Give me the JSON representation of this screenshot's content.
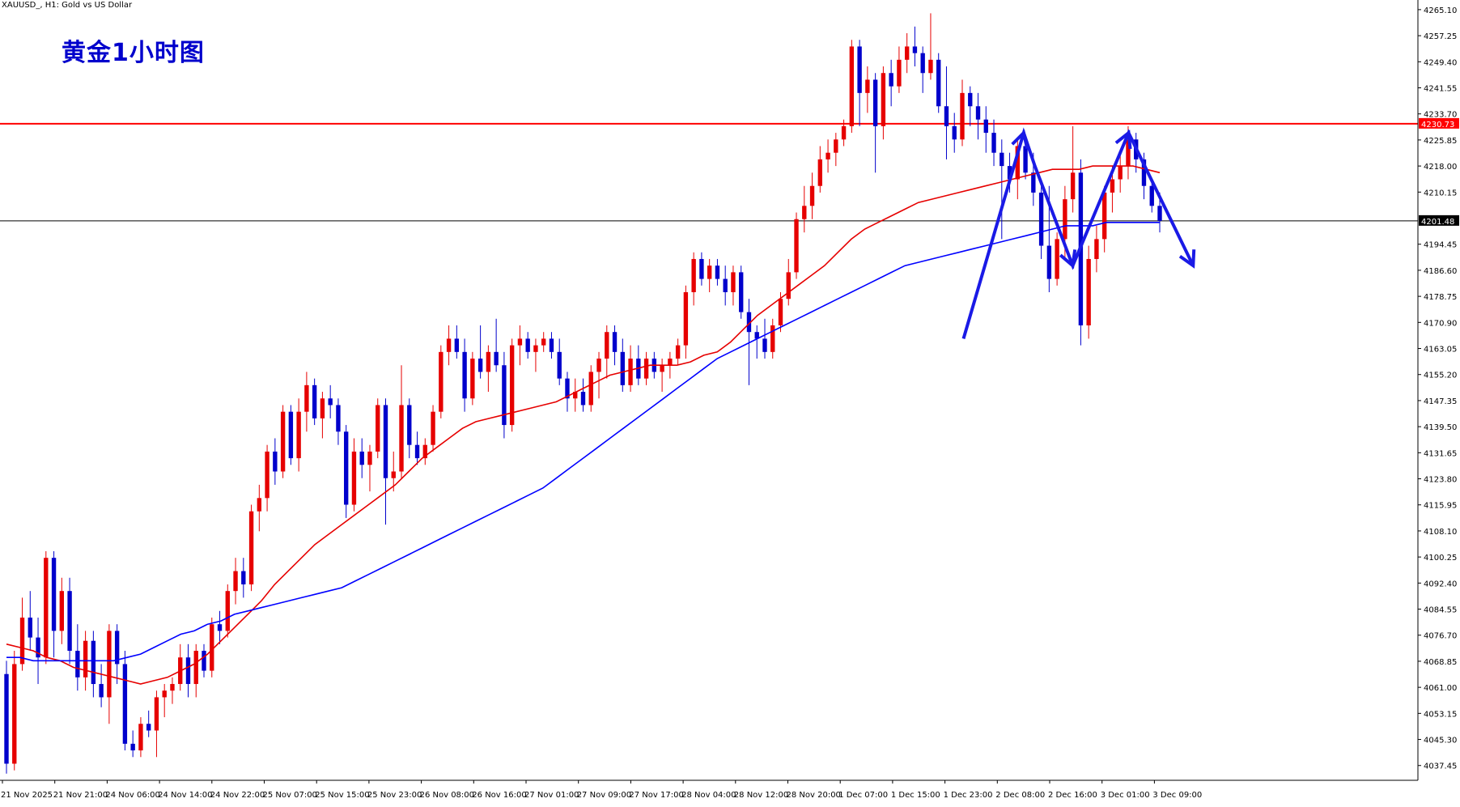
{
  "header": {
    "symbol_caption": "XAUUSD_, H1:  Gold vs US Dollar",
    "heading": "黄金1小时图"
  },
  "colors": {
    "bull": "#E60000",
    "bear": "#0000CC",
    "ma_fast": "#E60000",
    "ma_slow": "#0000FF",
    "resistance_line": "#FF0000",
    "price_line": "#000000",
    "forecast": "#1A1AE6"
  },
  "chart_data": {
    "type": "candlestick",
    "timeframe": "H1",
    "y_ticks": [
      4265.1,
      4257.25,
      4249.4,
      4241.55,
      4233.7,
      4225.85,
      4218.0,
      4210.15,
      4201.48,
      4194.45,
      4186.6,
      4178.75,
      4170.9,
      4163.05,
      4155.2,
      4147.35,
      4139.5,
      4131.65,
      4123.8,
      4115.95,
      4108.1,
      4100.25,
      4092.4,
      4084.55,
      4076.7,
      4068.85,
      4061.0,
      4053.15,
      4045.3,
      4037.45
    ],
    "ylim": [
      4033.0,
      4268.0
    ],
    "x_labels": [
      "21 Nov 2025",
      "21 Nov 21:00",
      "24 Nov 06:00",
      "24 Nov 14:00",
      "24 Nov 22:00",
      "25 Nov 07:00",
      "25 Nov 15:00",
      "25 Nov 23:00",
      "26 Nov 08:00",
      "26 Nov 16:00",
      "27 Nov 01:00",
      "27 Nov 09:00",
      "27 Nov 17:00",
      "28 Nov 04:00",
      "28 Nov 12:00",
      "28 Nov 20:00",
      "1 Dec 07:00",
      "1 Dec 15:00",
      "1 Dec 23:00",
      "2 Dec 08:00",
      "2 Dec 16:00",
      "3 Dec 01:00",
      "3 Dec 09:00"
    ],
    "resistance_level": 4230.73,
    "resistance_label": "4230.73",
    "current_price": 4201.48,
    "current_price_label": "4201.48",
    "candles": [
      [
        4065,
        4069,
        4035,
        4038
      ],
      [
        4038,
        4072,
        4036,
        4068
      ],
      [
        4068,
        4088,
        4066,
        4082
      ],
      [
        4082,
        4090,
        4072,
        4076
      ],
      [
        4076,
        4082,
        4062,
        4070
      ],
      [
        4070,
        4102,
        4068,
        4100
      ],
      [
        4100,
        4102,
        4070,
        4078
      ],
      [
        4078,
        4094,
        4074,
        4090
      ],
      [
        4090,
        4094,
        4068,
        4072
      ],
      [
        4072,
        4080,
        4060,
        4064
      ],
      [
        4064,
        4078,
        4060,
        4075
      ],
      [
        4075,
        4078,
        4058,
        4062
      ],
      [
        4062,
        4068,
        4055,
        4058
      ],
      [
        4058,
        4080,
        4050,
        4078
      ],
      [
        4078,
        4080,
        4062,
        4068
      ],
      [
        4068,
        4072,
        4042,
        4044
      ],
      [
        4044,
        4048,
        4040,
        4042
      ],
      [
        4042,
        4052,
        4040,
        4050
      ],
      [
        4050,
        4054,
        4046,
        4048
      ],
      [
        4048,
        4060,
        4040,
        4058
      ],
      [
        4058,
        4062,
        4052,
        4060
      ],
      [
        4060,
        4064,
        4056,
        4062
      ],
      [
        4062,
        4074,
        4060,
        4070
      ],
      [
        4070,
        4074,
        4058,
        4062
      ],
      [
        4062,
        4074,
        4058,
        4072
      ],
      [
        4072,
        4074,
        4064,
        4066
      ],
      [
        4066,
        4082,
        4064,
        4080
      ],
      [
        4080,
        4084,
        4074,
        4078
      ],
      [
        4078,
        4092,
        4076,
        4090
      ],
      [
        4090,
        4100,
        4086,
        4096
      ],
      [
        4096,
        4100,
        4088,
        4092
      ],
      [
        4092,
        4116,
        4090,
        4114
      ],
      [
        4114,
        4122,
        4108,
        4118
      ],
      [
        4118,
        4134,
        4114,
        4132
      ],
      [
        4132,
        4136,
        4122,
        4126
      ],
      [
        4126,
        4146,
        4124,
        4144
      ],
      [
        4144,
        4146,
        4128,
        4130
      ],
      [
        4130,
        4148,
        4126,
        4144
      ],
      [
        4144,
        4156,
        4138,
        4152
      ],
      [
        4152,
        4154,
        4140,
        4142
      ],
      [
        4142,
        4150,
        4136,
        4148
      ],
      [
        4148,
        4152,
        4142,
        4146
      ],
      [
        4146,
        4148,
        4134,
        4138
      ],
      [
        4138,
        4140,
        4112,
        4116
      ],
      [
        4116,
        4136,
        4114,
        4132
      ],
      [
        4132,
        4136,
        4124,
        4128
      ],
      [
        4128,
        4134,
        4120,
        4132
      ],
      [
        4132,
        4148,
        4130,
        4146
      ],
      [
        4146,
        4148,
        4110,
        4124
      ],
      [
        4124,
        4132,
        4120,
        4126
      ],
      [
        4126,
        4158,
        4124,
        4146
      ],
      [
        4146,
        4148,
        4130,
        4134
      ],
      [
        4134,
        4138,
        4128,
        4130
      ],
      [
        4130,
        4136,
        4128,
        4134
      ],
      [
        4134,
        4146,
        4132,
        4144
      ],
      [
        4144,
        4164,
        4142,
        4162
      ],
      [
        4162,
        4170,
        4158,
        4166
      ],
      [
        4166,
        4170,
        4160,
        4162
      ],
      [
        4162,
        4166,
        4144,
        4148
      ],
      [
        4148,
        4162,
        4146,
        4160
      ],
      [
        4160,
        4170,
        4154,
        4156
      ],
      [
        4156,
        4164,
        4150,
        4162
      ],
      [
        4162,
        4172,
        4156,
        4158
      ],
      [
        4158,
        4162,
        4136,
        4140
      ],
      [
        4140,
        4166,
        4138,
        4164
      ],
      [
        4164,
        4170,
        4158,
        4166
      ],
      [
        4166,
        4168,
        4160,
        4162
      ],
      [
        4162,
        4166,
        4156,
        4164
      ],
      [
        4164,
        4168,
        4162,
        4166
      ],
      [
        4166,
        4168,
        4160,
        4162
      ],
      [
        4162,
        4166,
        4152,
        4154
      ],
      [
        4154,
        4156,
        4144,
        4148
      ],
      [
        4148,
        4154,
        4144,
        4150
      ],
      [
        4150,
        4154,
        4144,
        4146
      ],
      [
        4146,
        4158,
        4144,
        4156
      ],
      [
        4156,
        4162,
        4148,
        4160
      ],
      [
        4160,
        4170,
        4154,
        4168
      ],
      [
        4168,
        4170,
        4158,
        4162
      ],
      [
        4162,
        4166,
        4150,
        4152
      ],
      [
        4152,
        4164,
        4150,
        4160
      ],
      [
        4160,
        4164,
        4152,
        4154
      ],
      [
        4154,
        4162,
        4152,
        4160
      ],
      [
        4160,
        4162,
        4154,
        4156
      ],
      [
        4156,
        4160,
        4150,
        4158
      ],
      [
        4158,
        4162,
        4154,
        4160
      ],
      [
        4160,
        4166,
        4158,
        4164
      ],
      [
        4164,
        4182,
        4160,
        4180
      ],
      [
        4180,
        4192,
        4176,
        4190
      ],
      [
        4190,
        4192,
        4182,
        4184
      ],
      [
        4184,
        4190,
        4180,
        4188
      ],
      [
        4188,
        4190,
        4182,
        4184
      ],
      [
        4184,
        4188,
        4176,
        4180
      ],
      [
        4180,
        4188,
        4176,
        4186
      ],
      [
        4186,
        4188,
        4172,
        4174
      ],
      [
        4174,
        4178,
        4152,
        4168
      ],
      [
        4168,
        4170,
        4160,
        4166
      ],
      [
        4166,
        4172,
        4160,
        4162
      ],
      [
        4162,
        4172,
        4160,
        4170
      ],
      [
        4170,
        4180,
        4168,
        4178
      ],
      [
        4178,
        4190,
        4176,
        4186
      ],
      [
        4186,
        4204,
        4184,
        4202
      ],
      [
        4202,
        4212,
        4198,
        4206
      ],
      [
        4206,
        4216,
        4202,
        4212
      ],
      [
        4212,
        4224,
        4210,
        4220
      ],
      [
        4220,
        4226,
        4216,
        4222
      ],
      [
        4222,
        4228,
        4218,
        4226
      ],
      [
        4226,
        4232,
        4224,
        4230
      ],
      [
        4230,
        4256,
        4228,
        4254
      ],
      [
        4254,
        4256,
        4230,
        4240
      ],
      [
        4240,
        4248,
        4234,
        4244
      ],
      [
        4244,
        4246,
        4216,
        4230
      ],
      [
        4230,
        4248,
        4226,
        4246
      ],
      [
        4246,
        4250,
        4236,
        4242
      ],
      [
        4242,
        4254,
        4240,
        4250
      ],
      [
        4250,
        4258,
        4246,
        4254
      ],
      [
        4254,
        4260,
        4248,
        4252
      ],
      [
        4252,
        4254,
        4240,
        4246
      ],
      [
        4246,
        4264,
        4244,
        4250
      ],
      [
        4250,
        4252,
        4234,
        4236
      ],
      [
        4236,
        4248,
        4220,
        4230
      ],
      [
        4230,
        4234,
        4222,
        4226
      ],
      [
        4226,
        4244,
        4224,
        4240
      ],
      [
        4240,
        4242,
        4230,
        4236
      ],
      [
        4236,
        4240,
        4226,
        4232
      ],
      [
        4232,
        4236,
        4222,
        4228
      ],
      [
        4228,
        4232,
        4218,
        4222
      ],
      [
        4222,
        4226,
        4196,
        4218
      ],
      [
        4218,
        4222,
        4210,
        4214
      ],
      [
        4214,
        4226,
        4208,
        4224
      ],
      [
        4224,
        4226,
        4214,
        4216
      ],
      [
        4216,
        4222,
        4206,
        4210
      ],
      [
        4210,
        4214,
        4190,
        4194
      ],
      [
        4194,
        4212,
        4180,
        4184
      ],
      [
        4184,
        4198,
        4182,
        4196
      ],
      [
        4196,
        4212,
        4190,
        4208
      ],
      [
        4208,
        4230,
        4204,
        4216
      ],
      [
        4216,
        4220,
        4164,
        4170
      ],
      [
        4170,
        4194,
        4166,
        4190
      ],
      [
        4190,
        4200,
        4186,
        4196
      ],
      [
        4196,
        4212,
        4192,
        4210
      ],
      [
        4210,
        4218,
        4204,
        4214
      ],
      [
        4214,
        4222,
        4210,
        4218
      ],
      [
        4218,
        4230,
        4214,
        4226
      ],
      [
        4226,
        4228,
        4216,
        4220
      ],
      [
        4220,
        4222,
        4208,
        4212
      ],
      [
        4212,
        4214,
        4204,
        4206
      ],
      [
        4206,
        4210,
        4198,
        4201.48
      ]
    ],
    "ma_fast_values": [
      4074,
      4073,
      4072,
      4070,
      4069,
      4067,
      4066,
      4065,
      4064,
      4063,
      4062,
      4063,
      4064,
      4066,
      4068,
      4071,
      4075,
      4079,
      4083,
      4087,
      4092,
      4096,
      4100,
      4104,
      4107,
      4110,
      4113,
      4116,
      4119,
      4122,
      4126,
      4130,
      4133,
      4136,
      4139,
      4141,
      4142,
      4143,
      4144,
      4145,
      4146,
      4147,
      4149,
      4151,
      4153,
      4155,
      4156,
      4157,
      4158,
      4158,
      4158,
      4159,
      4161,
      4162,
      4165,
      4169,
      4173,
      4176,
      4179,
      4182,
      4185,
      4188,
      4192,
      4196,
      4199,
      4201,
      4203,
      4205,
      4207,
      4208,
      4209,
      4210,
      4211,
      4212,
      4213,
      4214,
      4215,
      4216,
      4217,
      4217,
      4217,
      4218,
      4218,
      4218,
      4218,
      4217,
      4216
    ],
    "ma_slow_values": [
      4070,
      4070,
      4069,
      4069,
      4069,
      4069,
      4069,
      4069,
      4069,
      4070,
      4071,
      4073,
      4075,
      4077,
      4078,
      4080,
      4081,
      4083,
      4084,
      4085,
      4086,
      4087,
      4088,
      4089,
      4090,
      4091,
      4093,
      4095,
      4097,
      4099,
      4101,
      4103,
      4105,
      4107,
      4109,
      4111,
      4113,
      4115,
      4117,
      4119,
      4121,
      4124,
      4127,
      4130,
      4133,
      4136,
      4139,
      4142,
      4145,
      4148,
      4151,
      4154,
      4157,
      4160,
      4162,
      4164,
      4166,
      4168,
      4170,
      4172,
      4174,
      4176,
      4178,
      4180,
      4182,
      4184,
      4186,
      4188,
      4189,
      4190,
      4191,
      4192,
      4193,
      4194,
      4195,
      4196,
      4197,
      4198,
      4199,
      4200,
      4200,
      4200,
      4201,
      4201,
      4201,
      4201,
      4201
    ],
    "forecast_path": [
      [
        4166,
        1120
      ],
      [
        4228,
        1190
      ],
      [
        4218,
        1203
      ],
      [
        4188,
        1247
      ],
      [
        4228,
        1312
      ],
      [
        4188,
        1387
      ]
    ]
  }
}
